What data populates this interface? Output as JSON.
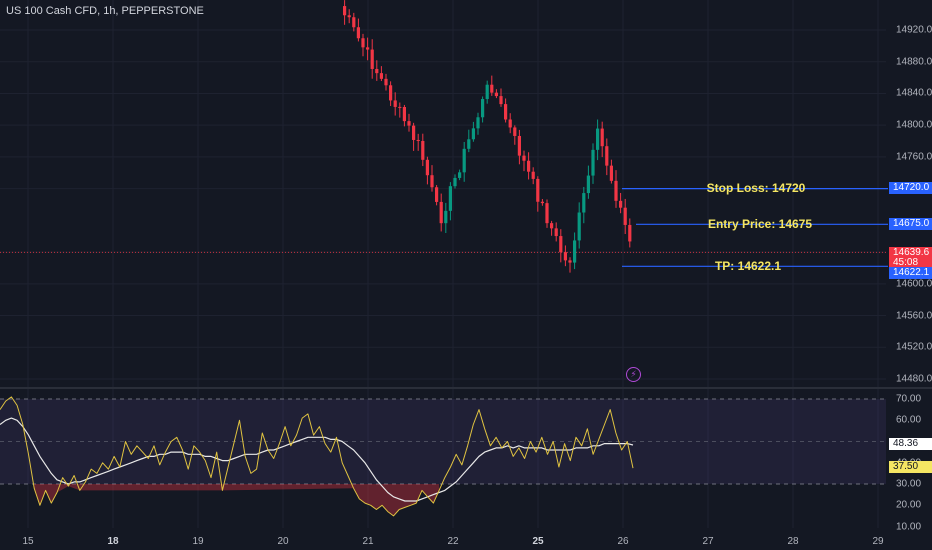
{
  "title": "US 100 Cash CFD, 1h, PEPPERSTONE",
  "price_axis": {
    "ticks": [
      "14920.0",
      "14880.0",
      "14840.0",
      "14800.0",
      "14760.0",
      "14600.0",
      "14560.0",
      "14520.0",
      "14480.0"
    ],
    "tick_values": [
      14920,
      14880,
      14840,
      14800,
      14760,
      14600,
      14560,
      14520,
      14480
    ],
    "tags": {
      "stop_loss": {
        "text": "14720.0",
        "value": 14720,
        "color": "#2962ff"
      },
      "entry": {
        "text": "14675.0",
        "value": 14675,
        "color": "#2962ff"
      },
      "current_price": {
        "text": "14639.6",
        "value": 14639.6,
        "color": "#f23645"
      },
      "countdown": {
        "text": "45:08",
        "color": "#f23645"
      },
      "take_profit": {
        "text": "14622.1",
        "value": 14622.1,
        "color": "#2962ff"
      }
    }
  },
  "annotations": {
    "stop_loss": "Stop Loss: 14720",
    "entry": "Entry Price: 14675",
    "take_profit": "TP: 14622.1"
  },
  "rsi_axis": {
    "ticks": [
      "70.00",
      "60.00",
      "40.00",
      "30.00",
      "20.00",
      "10.00"
    ],
    "tick_values": [
      70,
      60,
      40,
      30,
      20,
      10
    ],
    "tags": {
      "ma": {
        "text": "48.36",
        "value": 48.36
      },
      "rsi": {
        "text": "37.50",
        "value": 37.5
      }
    }
  },
  "time_axis": [
    {
      "label": "15",
      "bold": false
    },
    {
      "label": "18",
      "bold": true
    },
    {
      "label": "19",
      "bold": false
    },
    {
      "label": "20",
      "bold": false
    },
    {
      "label": "21",
      "bold": false
    },
    {
      "label": "22",
      "bold": false
    },
    {
      "label": "25",
      "bold": true
    },
    {
      "label": "26",
      "bold": false
    },
    {
      "label": "27",
      "bold": false
    },
    {
      "label": "28",
      "bold": false
    },
    {
      "label": "29",
      "bold": false
    }
  ],
  "colors": {
    "background": "#141823",
    "up": "#089981",
    "down": "#f23645",
    "level_line": "#2962ff",
    "annotation_text": "#f5e663",
    "rsi": "#e0c341",
    "rsi_ma": "#e8e8e8"
  },
  "chart_data": [
    {
      "type": "candlestick",
      "title": "US 100 Cash CFD, 1h, PEPPERSTONE",
      "ylim": [
        14460,
        14960
      ],
      "levels": [
        {
          "name": "Stop Loss",
          "value": 14720
        },
        {
          "name": "Entry Price",
          "value": 14675
        },
        {
          "name": "TP",
          "value": 14622.1
        },
        {
          "name": "Last",
          "value": 14639.6
        }
      ],
      "key_points": [
        {
          "date": "21",
          "price": 14950
        },
        {
          "date": "21",
          "price": 14770
        },
        {
          "date": "22",
          "price": 14680
        },
        {
          "date": "22",
          "price": 14855
        },
        {
          "date": "25",
          "price": 14620
        },
        {
          "date": "26",
          "price": 14790
        },
        {
          "date": "26",
          "price": 14639.6
        }
      ]
    },
    {
      "type": "line",
      "ylim": [
        5,
        78
      ],
      "bands": [
        30,
        70
      ],
      "series": [
        {
          "key": "rsi",
          "last": 37.5,
          "values": [
            65,
            69,
            71,
            67,
            58,
            44,
            28,
            20,
            27,
            21,
            26,
            33,
            29,
            34,
            27,
            31,
            37,
            35,
            40,
            37,
            43,
            38,
            50,
            44,
            48,
            45,
            42,
            48,
            39,
            45,
            50,
            52,
            46,
            37,
            48,
            45,
            41,
            33,
            45,
            27,
            38,
            49,
            60,
            43,
            35,
            37,
            54,
            46,
            42,
            49,
            57,
            48,
            53,
            61,
            63,
            53,
            57,
            49,
            45,
            52,
            40,
            34,
            28,
            23,
            21,
            20,
            18,
            20,
            17,
            15,
            18,
            19,
            20,
            21,
            27,
            24,
            21,
            27,
            33,
            38,
            44,
            39,
            48,
            58,
            65,
            56,
            48,
            52,
            47,
            50,
            43,
            47,
            42,
            50,
            45,
            52,
            44,
            50,
            38,
            49,
            41,
            52,
            48,
            56,
            44,
            51,
            58,
            65,
            54,
            46,
            50,
            37.5
          ]
        },
        {
          "key": "rsi_ma",
          "last": 48.36,
          "values": [
            58,
            60,
            61,
            60,
            57,
            53,
            48,
            43,
            39,
            35,
            32,
            31,
            30,
            31,
            31,
            32,
            33,
            34,
            35,
            36,
            37,
            38,
            39,
            40,
            41,
            42,
            43,
            43,
            44,
            44,
            45,
            45,
            45,
            44,
            44,
            44,
            43,
            43,
            42,
            41,
            41,
            42,
            43,
            44,
            44,
            44,
            45,
            46,
            46,
            47,
            48,
            49,
            50,
            51,
            52,
            52,
            52,
            52,
            51,
            51,
            50,
            48,
            46,
            43,
            40,
            36,
            32,
            29,
            26,
            24,
            23,
            22,
            22,
            22,
            23,
            24,
            25,
            26,
            27,
            29,
            31,
            34,
            37,
            40,
            43,
            45,
            46,
            47,
            47,
            48,
            47,
            48,
            47,
            47,
            47,
            47,
            46,
            46,
            46,
            46,
            46,
            47,
            47,
            47,
            48,
            48,
            49,
            49,
            49,
            49,
            49,
            48.36
          ]
        }
      ]
    }
  ]
}
